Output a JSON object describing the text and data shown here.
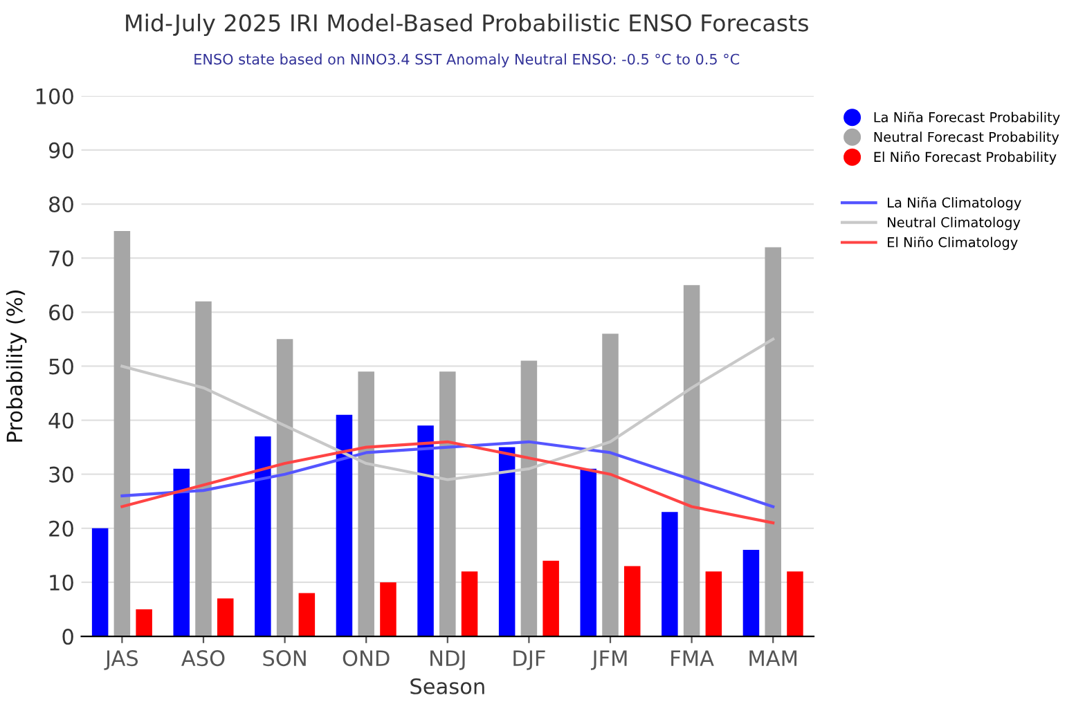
{
  "chart_data": {
    "type": "bar",
    "title": "Mid-July 2025 IRI Model-Based Probabilistic ENSO Forecasts",
    "subtitle": "ENSO state based on NINO3.4 SST Anomaly Neutral ENSO: -0.5 °C to 0.5 °C",
    "xlabel": "Season",
    "ylabel": "Probability (%)",
    "categories": [
      "JAS",
      "ASO",
      "SON",
      "OND",
      "NDJ",
      "DJF",
      "JFM",
      "FMA",
      "MAM"
    ],
    "series": [
      {
        "name": "La Niña Forecast Probability",
        "color": "#0000ff",
        "values": [
          20,
          31,
          37,
          41,
          39,
          35,
          31,
          23,
          16
        ]
      },
      {
        "name": "Neutral Forecast Probability",
        "color": "#a6a6a6",
        "values": [
          75,
          62,
          55,
          49,
          49,
          51,
          56,
          65,
          72
        ]
      },
      {
        "name": "El Niño Forecast Probability",
        "color": "#ff0000",
        "values": [
          5,
          7,
          8,
          10,
          12,
          14,
          13,
          12,
          12
        ]
      },
      {
        "name": "La Niña Climatology",
        "type": "line",
        "color": "#5555ff",
        "values": [
          26,
          27,
          30,
          34,
          35,
          36,
          34,
          29,
          24
        ]
      },
      {
        "name": "Neutral Climatology",
        "type": "line",
        "color": "#c8c8c8",
        "values": [
          50,
          46,
          39,
          32,
          29,
          31,
          36,
          46,
          55
        ]
      },
      {
        "name": "El Niño Climatology",
        "type": "line",
        "color": "#ff4444",
        "values": [
          24,
          28,
          32,
          35,
          36,
          33,
          30,
          24,
          21
        ]
      }
    ],
    "ylim": [
      0,
      100
    ],
    "yticks": [
      0,
      10,
      20,
      30,
      40,
      50,
      60,
      70,
      80,
      90,
      100
    ],
    "grid": "y",
    "legend": "right",
    "line_style": "solid"
  }
}
